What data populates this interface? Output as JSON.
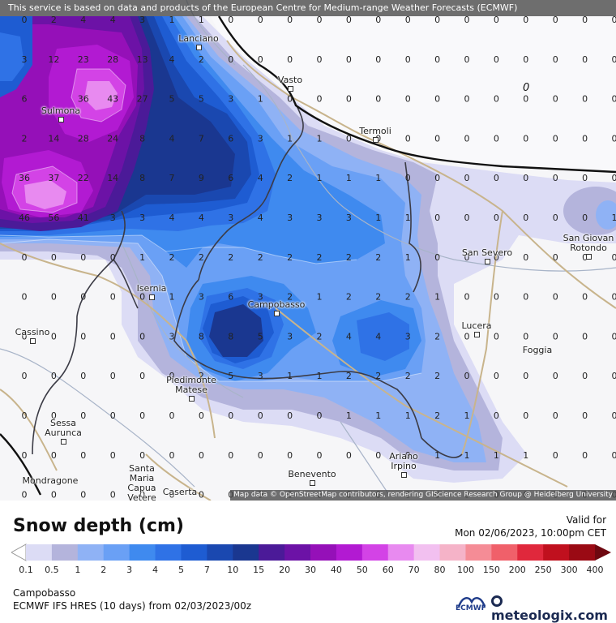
{
  "attribution_top": "This service is based on data and products of the European Centre for Medium-range Weather Forecasts (ECMWF)",
  "attribution_bottom": "Map data © OpenStreetMap contributors, rendering GIScience Research Group @ Heidelberg University",
  "legend": {
    "title": "Snow depth (cm)",
    "valid_for_label": "Valid for",
    "valid_time": "Mon 02/06/2023, 10:00pm CET",
    "steps": [
      {
        "label": "0.1",
        "color": "#dcdcf5"
      },
      {
        "label": "0.5",
        "color": "#b4b4dc"
      },
      {
        "label": "1",
        "color": "#8fb2f5"
      },
      {
        "label": "2",
        "color": "#6aa0f5"
      },
      {
        "label": "3",
        "color": "#3f8aef"
      },
      {
        "label": "4",
        "color": "#2f72e6"
      },
      {
        "label": "5",
        "color": "#1e5cd2"
      },
      {
        "label": "7",
        "color": "#1a48b0"
      },
      {
        "label": "10",
        "color": "#1a3790"
      },
      {
        "label": "15",
        "color": "#4b1a98"
      },
      {
        "label": "20",
        "color": "#6c12a6"
      },
      {
        "label": "30",
        "color": "#9510b8"
      },
      {
        "label": "40",
        "color": "#b21ad2"
      },
      {
        "label": "50",
        "color": "#d343e6"
      },
      {
        "label": "60",
        "color": "#e88af0"
      },
      {
        "label": "70",
        "color": "#f2c0f0"
      },
      {
        "label": "80",
        "color": "#f5b3c8"
      },
      {
        "label": "100",
        "color": "#f58c96"
      },
      {
        "label": "150",
        "color": "#f0606a"
      },
      {
        "label": "200",
        "color": "#e0283c"
      },
      {
        "label": "250",
        "color": "#c0101e"
      },
      {
        "label": "300",
        "color": "#9a0a14"
      },
      {
        "label": "400",
        "color": "#6e0810"
      }
    ]
  },
  "location": "Campobasso",
  "model_info": "ECMWF IFS HRES (10 days) from 02/03/2023/00z",
  "brand": {
    "ecmwf": "ECMWF",
    "meteologix": "meteologix.com"
  },
  "cities": [
    {
      "name": "Lanciano"
    },
    {
      "name": "Vasto"
    },
    {
      "name": "Sulmona"
    },
    {
      "name": "Termoli"
    },
    {
      "name": "San Severo"
    },
    {
      "name": "San Giovanni Rotondo",
      "label": "San Giovan\nRotondo"
    },
    {
      "name": "Isernia"
    },
    {
      "name": "Campobasso"
    },
    {
      "name": "Lucera"
    },
    {
      "name": "Foggia"
    },
    {
      "name": "Cassino"
    },
    {
      "name": "Piedimonte Matese",
      "label": "Piedimonte\nMatese"
    },
    {
      "name": "Sessa Aurunca",
      "label": "Sessa\nAurunca"
    },
    {
      "name": "Ariano Irpino",
      "label": "Ariano\nIrpino"
    },
    {
      "name": "Benevento"
    },
    {
      "name": "Mondragone"
    },
    {
      "name": "Santa Maria Capua Vetere",
      "label": "Santa\nMaria\nCapua\nVetere"
    },
    {
      "name": "Caserta"
    }
  ],
  "grid_values": [
    [
      "0",
      "2",
      "4",
      "4",
      "3",
      "1",
      "1",
      "0",
      "0",
      "0",
      "0",
      "0",
      "0",
      "0",
      "0",
      "0",
      "0",
      "0",
      "0",
      "0",
      "0",
      "0"
    ],
    [
      "3",
      "12",
      "23",
      "28",
      "13",
      "4",
      "2",
      "0",
      "0",
      "0",
      "0",
      "0",
      "0",
      "0",
      "0",
      "0",
      "0",
      "0",
      "0",
      "0",
      "0",
      "0"
    ],
    [
      "6",
      "",
      "36",
      "43",
      "27",
      "5",
      "5",
      "3",
      "1",
      "0",
      "0",
      "0",
      "0",
      "0",
      "0",
      "0",
      "0",
      "0",
      "0",
      "0",
      "0",
      "0"
    ],
    [
      "2",
      "14",
      "28",
      "24",
      "8",
      "4",
      "7",
      "6",
      "3",
      "1",
      "1",
      "0",
      "0",
      "0",
      "0",
      "0",
      "0",
      "0",
      "0",
      "0",
      "0",
      "0"
    ],
    [
      "36",
      "37",
      "22",
      "14",
      "8",
      "7",
      "9",
      "6",
      "4",
      "2",
      "1",
      "1",
      "1",
      "0",
      "0",
      "0",
      "0",
      "0",
      "0",
      "0",
      "0",
      "1"
    ],
    [
      "46",
      "56",
      "41",
      "3",
      "3",
      "4",
      "4",
      "3",
      "4",
      "3",
      "3",
      "3",
      "1",
      "1",
      "0",
      "0",
      "0",
      "0",
      "0",
      "0",
      "1",
      ""
    ],
    [
      "0",
      "0",
      "0",
      "0",
      "1",
      "2",
      "2",
      "2",
      "2",
      "2",
      "2",
      "2",
      "2",
      "1",
      "0",
      "0",
      "0",
      "0",
      "0",
      "0",
      "0",
      "0"
    ],
    [
      "0",
      "0",
      "0",
      "0",
      "0",
      "1",
      "3",
      "6",
      "3",
      "2",
      "1",
      "2",
      "2",
      "2",
      "1",
      "0",
      "0",
      "0",
      "0",
      "0",
      "0",
      "0"
    ],
    [
      "0",
      "0",
      "0",
      "0",
      "0",
      "3",
      "8",
      "8",
      "5",
      "3",
      "2",
      "4",
      "4",
      "3",
      "2",
      "0",
      "0",
      "0",
      "0",
      "0",
      "0",
      "0"
    ],
    [
      "0",
      "0",
      "0",
      "0",
      "0",
      "0",
      "2",
      "5",
      "3",
      "1",
      "1",
      "2",
      "2",
      "2",
      "2",
      "0",
      "0",
      "0",
      "0",
      "0",
      "0",
      "0"
    ],
    [
      "0",
      "0",
      "0",
      "0",
      "0",
      "0",
      "0",
      "0",
      "0",
      "0",
      "0",
      "1",
      "1",
      "1",
      "2",
      "1",
      "0",
      "0",
      "0",
      "0",
      "0",
      "0"
    ],
    [
      "0",
      "0",
      "0",
      "0",
      "0",
      "0",
      "0",
      "0",
      "0",
      "0",
      "0",
      "0",
      "0",
      "0",
      "1",
      "1",
      "1",
      "1",
      "0",
      "0",
      "0",
      "0"
    ],
    [
      "0",
      "0",
      "0",
      "0",
      "0",
      "0",
      "0",
      "0",
      "0",
      "0",
      "0",
      "0",
      "0",
      "0",
      "0",
      "0",
      "0",
      "0",
      "0",
      "0",
      "0",
      "0"
    ]
  ],
  "map_marker": "0"
}
